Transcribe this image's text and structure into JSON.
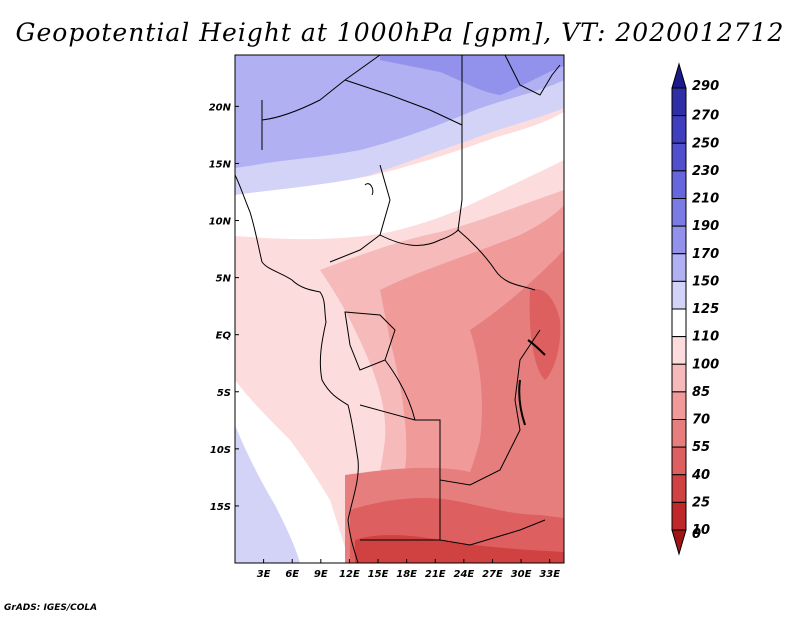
{
  "title": "Geopotential Height at 1000hPa [gpm], VT: 2020012712",
  "credit": "GrADS: IGES/COLA",
  "map": {
    "lon_ticks": [
      "3E",
      "6E",
      "9E",
      "12E",
      "15E",
      "18E",
      "21E",
      "24E",
      "27E",
      "30E",
      "33E"
    ],
    "lat_ticks": [
      "20N",
      "15N",
      "10N",
      "5N",
      "EQ",
      "5S",
      "10S",
      "15S"
    ],
    "lon_range": [
      0,
      34.5
    ],
    "lat_range": [
      -20,
      24.5
    ]
  },
  "colorbar": {
    "levels": [
      "290",
      "270",
      "250",
      "230",
      "210",
      "190",
      "170",
      "150",
      "125",
      "110",
      "100",
      "85",
      "70",
      "55",
      "40",
      "25",
      "10",
      "0"
    ],
    "colors": [
      "#1a1a8c",
      "#2e2ea6",
      "#3e3ebf",
      "#5050cf",
      "#6666dd",
      "#7b7be6",
      "#9292ec",
      "#b0b0f2",
      "#d3d3f8",
      "#ffffff",
      "#fcdcdc",
      "#f6baba",
      "#f09a9a",
      "#e67e7e",
      "#dd5f5f",
      "#d04242",
      "#bf2828",
      "#a01414"
    ]
  }
}
